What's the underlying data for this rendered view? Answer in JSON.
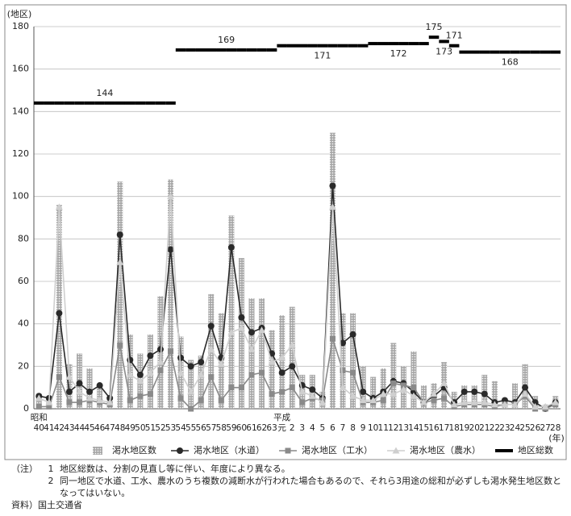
{
  "chart_data": {
    "type": "combo",
    "y_unit": "(地区)",
    "x_unit": "(年)",
    "era_labels": [
      "昭和",
      "平成"
    ],
    "categories": [
      "40",
      "41",
      "42",
      "43",
      "44",
      "45",
      "46",
      "47",
      "48",
      "49",
      "50",
      "51",
      "52",
      "53",
      "54",
      "55",
      "56",
      "57",
      "58",
      "59",
      "60",
      "61",
      "62",
      "63",
      "元",
      "2",
      "3",
      "4",
      "5",
      "6",
      "7",
      "8",
      "9",
      "10",
      "11",
      "12",
      "13",
      "14",
      "15",
      "16",
      "17",
      "18",
      "19",
      "20",
      "21",
      "22",
      "23",
      "24",
      "25",
      "26",
      "27",
      "28"
    ],
    "ylim": [
      0,
      180
    ],
    "yticks": [
      0,
      20,
      40,
      60,
      80,
      100,
      120,
      140,
      160,
      180
    ],
    "grid": true,
    "series": [
      {
        "name": "渇水地区数",
        "type": "bar",
        "color": "#a8a8a8",
        "values": [
          7,
          6,
          96,
          21,
          26,
          19,
          11,
          6,
          107,
          35,
          26,
          35,
          53,
          108,
          34,
          23,
          25,
          54,
          45,
          91,
          71,
          52,
          52,
          37,
          44,
          48,
          16,
          16,
          8,
          130,
          45,
          45,
          20,
          15,
          19,
          31,
          20,
          27,
          11,
          12,
          22,
          8,
          11,
          11,
          16,
          13,
          5,
          12,
          21,
          6,
          2,
          6
        ]
      },
      {
        "name": "渇水地区（水道）",
        "type": "line",
        "marker": "circle",
        "color": "#2a2a2a",
        "values": [
          6,
          5,
          45,
          8,
          12,
          8,
          11,
          5,
          82,
          23,
          16,
          25,
          28,
          75,
          24,
          20,
          22,
          39,
          24,
          76,
          43,
          36,
          38,
          26,
          17,
          20,
          11,
          9,
          5,
          105,
          31,
          35,
          8,
          5,
          8,
          13,
          12,
          8,
          3,
          6,
          10,
          3,
          8,
          8,
          7,
          3,
          4,
          3,
          10,
          3,
          0,
          3
        ]
      },
      {
        "name": "渇水地区（工水）",
        "type": "line",
        "marker": "square",
        "color": "#8a8a8a",
        "values": [
          1,
          1,
          15,
          3,
          3,
          4,
          3,
          2,
          30,
          4,
          6,
          7,
          18,
          27,
          5,
          0,
          4,
          15,
          4,
          10,
          10,
          16,
          17,
          7,
          8,
          10,
          3,
          5,
          4,
          33,
          18,
          17,
          3,
          3,
          4,
          12,
          11,
          10,
          3,
          4,
          5,
          1,
          2,
          2,
          2,
          1,
          2,
          2,
          6,
          0,
          0,
          2
        ]
      },
      {
        "name": "渇水地区（農水）",
        "type": "line",
        "marker": "triangle",
        "color": "#cfcfcf",
        "values": [
          5,
          3,
          95,
          15,
          8,
          5,
          4,
          3,
          69,
          16,
          13,
          17,
          22,
          100,
          17,
          8,
          16,
          28,
          21,
          36,
          38,
          28,
          37,
          22,
          24,
          30,
          8,
          6,
          3,
          95,
          10,
          6,
          4,
          4,
          7,
          7,
          9,
          6,
          3,
          7,
          12,
          2,
          3,
          3,
          3,
          2,
          2,
          2,
          7,
          1,
          1,
          3
        ]
      },
      {
        "name": "地区総数",
        "type": "step",
        "color": "#000000",
        "values": [
          144,
          144,
          144,
          144,
          144,
          144,
          144,
          144,
          144,
          144,
          144,
          144,
          144,
          144,
          169,
          169,
          169,
          169,
          169,
          169,
          169,
          169,
          169,
          169,
          171,
          171,
          171,
          171,
          171,
          171,
          171,
          171,
          171,
          172,
          172,
          172,
          172,
          172,
          172,
          175,
          173,
          171,
          168,
          168,
          168,
          168,
          168,
          168,
          168,
          168,
          168,
          168
        ]
      }
    ]
  },
  "notes": {
    "lead": "（注）",
    "items": [
      {
        "number": "1",
        "text": "地区総数は、分割の見直し等に伴い、年度により異なる。"
      },
      {
        "number": "2",
        "text": "同一地区で水道、工水、農水のうち複数の減断水が行われた場合もあるので、それら3用途の総和が必ずしも渇水発生地区数となってはいない。"
      }
    ],
    "source_lead": "資料）",
    "source": "国土交通省"
  }
}
